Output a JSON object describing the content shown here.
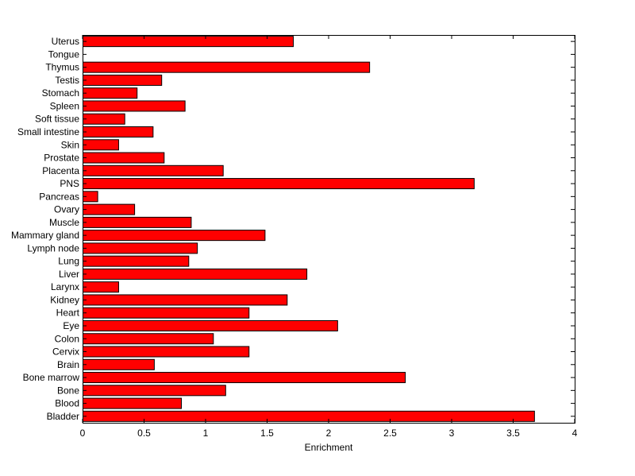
{
  "chart_data": {
    "type": "bar",
    "orientation": "horizontal",
    "categories": [
      "Bladder",
      "Blood",
      "Bone",
      "Bone marrow",
      "Brain",
      "Cervix",
      "Colon",
      "Eye",
      "Heart",
      "Kidney",
      "Larynx",
      "Liver",
      "Lung",
      "Lymph node",
      "Mammary gland",
      "Muscle",
      "Ovary",
      "Pancreas",
      "PNS",
      "Placenta",
      "Prostate",
      "Skin",
      "Small intestine",
      "Soft tissue",
      "Spleen",
      "Stomach",
      "Testis",
      "Thymus",
      "Tongue",
      "Uterus"
    ],
    "values": [
      3.67,
      0.8,
      1.16,
      2.62,
      0.58,
      1.35,
      1.06,
      2.07,
      1.35,
      1.66,
      0.29,
      1.82,
      0.86,
      0.93,
      1.48,
      0.88,
      0.42,
      0.12,
      3.18,
      1.14,
      0.66,
      0.29,
      0.57,
      0.34,
      0.83,
      0.44,
      0.64,
      2.33,
      0.0,
      1.71
    ],
    "xlabel": "Enrichment",
    "ylabel": "",
    "title": "",
    "xlim": [
      0,
      4
    ],
    "xticks": [
      0,
      0.5,
      1,
      1.5,
      2,
      2.5,
      3,
      3.5,
      4
    ],
    "xtick_labels": [
      "0",
      "0.5",
      "1",
      "1.5",
      "2",
      "2.5",
      "3",
      "3.5",
      "4"
    ],
    "grid": false,
    "legend": "none",
    "bar_color": "#ff0000",
    "bar_edge_color": "#000000"
  }
}
